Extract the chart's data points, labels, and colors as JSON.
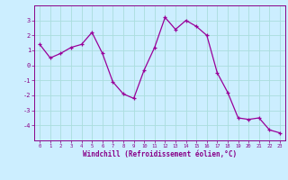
{
  "x": [
    0,
    1,
    2,
    3,
    4,
    5,
    6,
    7,
    8,
    9,
    10,
    11,
    12,
    13,
    14,
    15,
    16,
    17,
    18,
    19,
    20,
    21,
    22,
    23
  ],
  "y": [
    1.4,
    0.5,
    0.8,
    1.2,
    1.4,
    2.2,
    0.8,
    -1.1,
    -1.9,
    -2.2,
    -0.3,
    1.2,
    3.2,
    2.4,
    3.0,
    2.6,
    2.0,
    -0.5,
    -1.8,
    -3.5,
    -3.6,
    -3.5,
    -4.3,
    -4.5
  ],
  "line_color": "#990099",
  "marker": "+",
  "bg_color": "#cceeff",
  "grid_color": "#aadddd",
  "xlabel": "Windchill (Refroidissement éolien,°C)",
  "xlabel_color": "#880088",
  "tick_color": "#880088",
  "ylim": [
    -5,
    4
  ],
  "yticks": [
    -4,
    -3,
    -2,
    -1,
    0,
    1,
    2,
    3
  ],
  "xlim": [
    -0.5,
    23.5
  ],
  "xticks": [
    0,
    1,
    2,
    3,
    4,
    5,
    6,
    7,
    8,
    9,
    10,
    11,
    12,
    13,
    14,
    15,
    16,
    17,
    18,
    19,
    20,
    21,
    22,
    23
  ]
}
